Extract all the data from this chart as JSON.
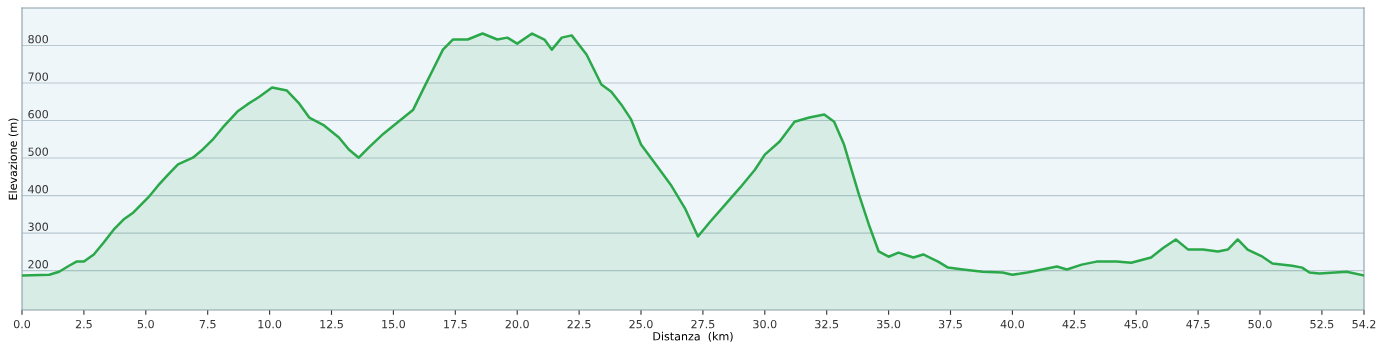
{
  "chart_data": {
    "type": "area",
    "xlabel": "Distanza  (km)",
    "ylabel": "Elevazione (m)",
    "color": "#2aa84a",
    "grid": "y",
    "xlim": [
      0,
      54.2
    ],
    "ylim": [
      95,
      900
    ],
    "xticks": [
      {
        "value": 0,
        "label": "0.0"
      },
      2.5,
      {
        "value": 5,
        "label": "5.0"
      },
      7.5,
      {
        "value": 10,
        "label": "10.0"
      },
      12.5,
      {
        "value": 15,
        "label": "15.0"
      },
      17.5,
      {
        "value": 20,
        "label": "20.0"
      },
      22.5,
      {
        "value": 25,
        "label": "25.0"
      },
      27.5,
      {
        "value": 30,
        "label": "30.0"
      },
      32.5,
      {
        "value": 35,
        "label": "35.0"
      },
      37.5,
      {
        "value": 40,
        "label": "40.0"
      },
      42.5,
      {
        "value": 45,
        "label": "45.0"
      },
      47.5,
      {
        "value": 50,
        "label": "50.0"
      },
      52.5,
      54.2
    ],
    "yticks": [
      200,
      300,
      400,
      500,
      600,
      700,
      800
    ],
    "x": [
      0,
      1.1,
      1.5,
      1.9,
      2.2,
      2.5,
      2.9,
      3.3,
      3.7,
      4.1,
      4.5,
      5.1,
      5.5,
      5.9,
      6.3,
      6.9,
      7.3,
      7.7,
      8.1,
      8.7,
      9.1,
      9.6,
      10.1,
      10.7,
      11.2,
      11.6,
      12.2,
      12.8,
      13.2,
      13.6,
      14.0,
      14.6,
      15.2,
      15.8,
      16.2,
      16.6,
      17.0,
      17.4,
      18.0,
      18.6,
      19.2,
      19.6,
      20.0,
      20.6,
      21.1,
      21.4,
      21.8,
      22.2,
      22.8,
      23.4,
      23.8,
      24.2,
      24.6,
      25.0,
      25.6,
      26.2,
      26.8,
      27.3,
      27.8,
      28.4,
      29.0,
      29.6,
      30.0,
      30.6,
      31.2,
      31.8,
      32.4,
      32.8,
      33.2,
      33.5,
      33.8,
      34.2,
      34.6,
      35.0,
      35.4,
      36.0,
      36.4,
      37.0,
      37.4,
      38.0,
      38.8,
      39.6,
      40.0,
      40.6,
      41.2,
      41.8,
      42.2,
      42.8,
      43.4,
      44.2,
      44.8,
      45.6,
      46.1,
      46.6,
      47.1,
      47.7,
      48.3,
      48.7,
      49.1,
      49.5,
      50.1,
      50.5,
      51.3,
      51.7,
      52.0,
      52.4,
      53.5,
      54.2
    ],
    "values": [
      187,
      189,
      197,
      213,
      224,
      224,
      243,
      275,
      309,
      336,
      355,
      395,
      427,
      456,
      483,
      501,
      523,
      549,
      581,
      624,
      643,
      664,
      688,
      680,
      645,
      608,
      587,
      555,
      523,
      501,
      528,
      565,
      597,
      629,
      683,
      736,
      789,
      816,
      816,
      832,
      816,
      821,
      805,
      832,
      816,
      789,
      821,
      827,
      776,
      696,
      677,
      643,
      603,
      536,
      483,
      429,
      363,
      291,
      331,
      376,
      421,
      469,
      509,
      544,
      597,
      608,
      616,
      597,
      536,
      469,
      403,
      323,
      251,
      237,
      248,
      235,
      243,
      224,
      208,
      203,
      197,
      195,
      189,
      195,
      203,
      211,
      203,
      216,
      224,
      224,
      221,
      235,
      261,
      283,
      256,
      256,
      251,
      256,
      283,
      256,
      237,
      219,
      213,
      208,
      195,
      192,
      197,
      187
    ]
  }
}
